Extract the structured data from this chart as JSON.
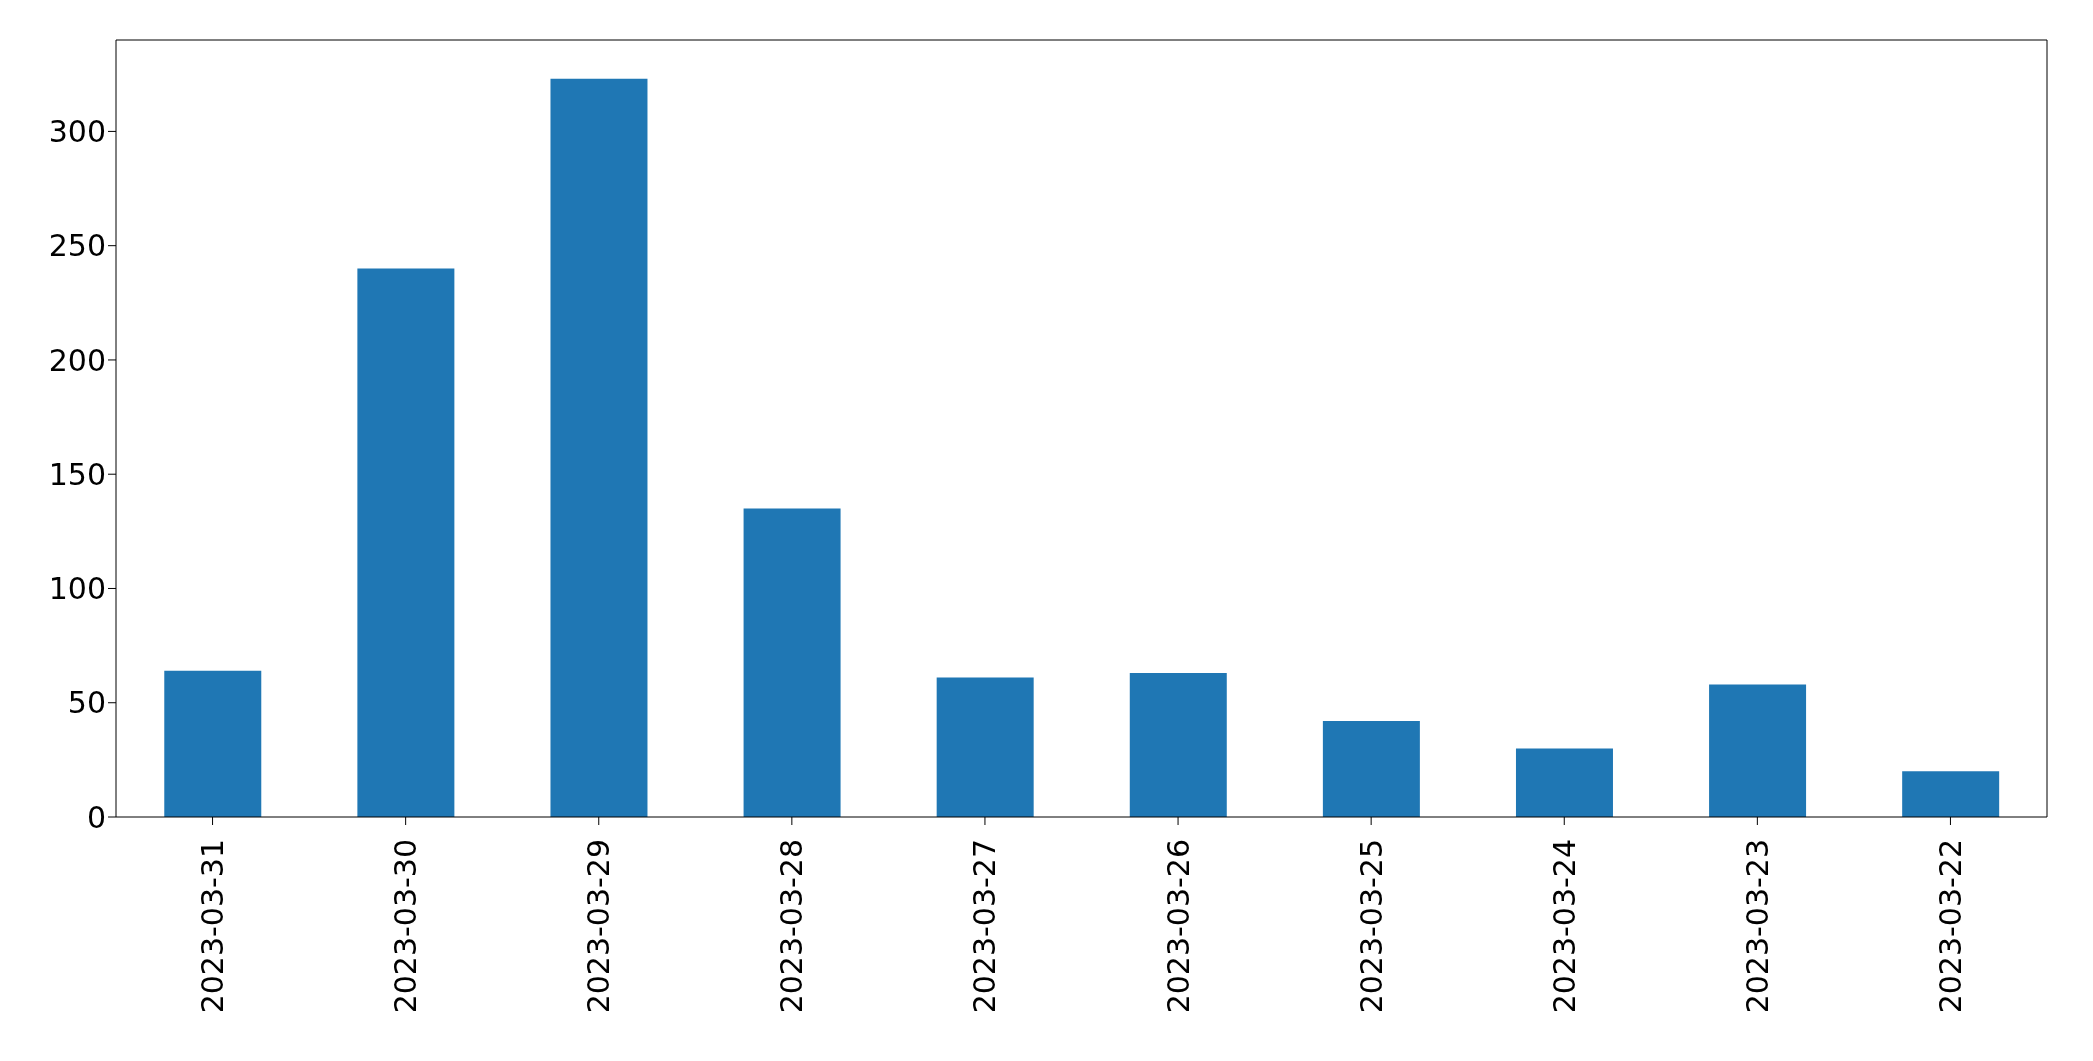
{
  "chart_data": {
    "type": "bar",
    "categories": [
      "2023-03-31",
      "2023-03-30",
      "2023-03-29",
      "2023-03-28",
      "2023-03-27",
      "2023-03-26",
      "2023-03-25",
      "2023-03-24",
      "2023-03-23",
      "2023-03-22"
    ],
    "values": [
      64,
      240,
      323,
      135,
      61,
      63,
      42,
      30,
      58,
      20
    ],
    "color": "#1f77b4",
    "ylim": [
      0,
      340
    ],
    "yticks": [
      0,
      50,
      100,
      150,
      200,
      250,
      300
    ],
    "grid": false,
    "legend": false
  }
}
